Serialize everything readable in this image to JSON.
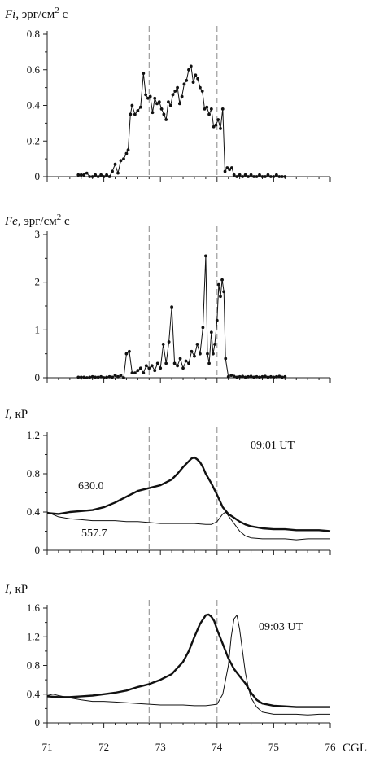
{
  "chart_data": [
    {
      "type": "line",
      "title_symbol": "Fi",
      "title_unit": ", эрг/см",
      "title_sup": "2",
      "title_tail": " с",
      "ylim": [
        0,
        0.8
      ],
      "yticks": [
        "0",
        "0.2",
        "0.4",
        "0.6",
        "0.8"
      ],
      "xlim": [
        71,
        76
      ],
      "dashed_x": [
        72.8,
        74.0
      ],
      "series": [
        {
          "marker": "dot",
          "x": [
            71.55,
            71.6,
            71.65,
            71.7,
            71.75,
            71.8,
            71.85,
            71.9,
            71.95,
            72.0,
            72.05,
            72.1,
            72.15,
            72.2,
            72.25,
            72.3,
            72.35,
            72.4,
            72.43,
            72.47,
            72.5,
            72.55,
            72.6,
            72.65,
            72.7,
            72.74,
            72.78,
            72.82,
            72.86,
            72.9,
            72.94,
            72.98,
            73.02,
            73.06,
            73.1,
            73.14,
            73.18,
            73.22,
            73.26,
            73.3,
            73.34,
            73.38,
            73.42,
            73.46,
            73.5,
            73.54,
            73.58,
            73.62,
            73.66,
            73.7,
            73.74,
            73.78,
            73.82,
            73.86,
            73.9,
            73.94,
            73.98,
            74.02,
            74.06,
            74.1,
            74.14,
            74.18,
            74.22,
            74.26,
            74.3,
            74.35,
            74.4,
            74.45,
            74.5,
            74.55,
            74.6,
            74.65,
            74.7,
            74.75,
            74.8,
            74.85,
            74.9,
            74.95,
            75.0,
            75.05,
            75.1,
            75.15,
            75.2
          ],
          "y": [
            0.01,
            0.01,
            0.01,
            0.02,
            0.0,
            0.0,
            0.01,
            0.0,
            0.01,
            0.0,
            0.01,
            0.0,
            0.03,
            0.07,
            0.02,
            0.09,
            0.1,
            0.13,
            0.15,
            0.35,
            0.4,
            0.35,
            0.37,
            0.39,
            0.58,
            0.46,
            0.44,
            0.45,
            0.36,
            0.44,
            0.41,
            0.42,
            0.38,
            0.35,
            0.32,
            0.42,
            0.4,
            0.46,
            0.48,
            0.5,
            0.41,
            0.45,
            0.52,
            0.54,
            0.6,
            0.62,
            0.53,
            0.57,
            0.55,
            0.5,
            0.48,
            0.38,
            0.39,
            0.35,
            0.38,
            0.28,
            0.29,
            0.32,
            0.27,
            0.38,
            0.03,
            0.05,
            0.04,
            0.05,
            0.01,
            0.0,
            0.01,
            0.0,
            0.01,
            0.0,
            0.01,
            0.0,
            0.0,
            0.01,
            0.0,
            0.0,
            0.01,
            0.0,
            0.0,
            0.01,
            0.0,
            0.0,
            0.0
          ]
        }
      ]
    },
    {
      "type": "line",
      "title_symbol": "Fe",
      "title_unit": ", эрг/см",
      "title_sup": "2",
      "title_tail": " с",
      "ylim": [
        0,
        3
      ],
      "yticks": [
        "0",
        "1",
        "2",
        "3"
      ],
      "xlim": [
        71,
        76
      ],
      "dashed_x": [
        72.8,
        74.0
      ],
      "series": [
        {
          "marker": "dot",
          "x": [
            71.55,
            71.6,
            71.65,
            71.7,
            71.75,
            71.8,
            71.85,
            71.9,
            71.95,
            72.0,
            72.05,
            72.1,
            72.15,
            72.2,
            72.25,
            72.3,
            72.35,
            72.4,
            72.45,
            72.5,
            72.55,
            72.6,
            72.65,
            72.7,
            72.75,
            72.8,
            72.85,
            72.9,
            72.95,
            73.0,
            73.05,
            73.1,
            73.15,
            73.2,
            73.25,
            73.3,
            73.35,
            73.4,
            73.45,
            73.5,
            73.55,
            73.6,
            73.65,
            73.7,
            73.75,
            73.8,
            73.83,
            73.86,
            73.9,
            73.93,
            73.96,
            74.0,
            74.03,
            74.06,
            74.09,
            74.12,
            74.15,
            74.2,
            74.25,
            74.3,
            74.35,
            74.4,
            74.45,
            74.5,
            74.55,
            74.6,
            74.65,
            74.7,
            74.75,
            74.8,
            74.85,
            74.9,
            74.95,
            75.0,
            75.05,
            75.1,
            75.15,
            75.2
          ],
          "y": [
            0.01,
            0.01,
            0.01,
            0.0,
            0.01,
            0.02,
            0.01,
            0.01,
            0.02,
            0.0,
            0.01,
            0.02,
            0.01,
            0.05,
            0.02,
            0.05,
            0.0,
            0.5,
            0.55,
            0.1,
            0.1,
            0.15,
            0.2,
            0.1,
            0.25,
            0.2,
            0.25,
            0.15,
            0.3,
            0.2,
            0.7,
            0.3,
            0.75,
            1.48,
            0.3,
            0.25,
            0.4,
            0.2,
            0.35,
            0.3,
            0.55,
            0.45,
            0.7,
            0.5,
            1.05,
            2.55,
            0.5,
            0.3,
            0.95,
            0.5,
            0.7,
            1.2,
            1.95,
            1.7,
            2.05,
            1.8,
            0.4,
            0.02,
            0.05,
            0.03,
            0.01,
            0.02,
            0.03,
            0.01,
            0.02,
            0.03,
            0.01,
            0.02,
            0.01,
            0.02,
            0.03,
            0.01,
            0.02,
            0.01,
            0.02,
            0.03,
            0.01,
            0.02
          ]
        }
      ]
    },
    {
      "type": "line",
      "title_symbol": "I",
      "title_unit": ", кР",
      "annotation": "09:01  UT",
      "ylim": [
        0,
        1.2
      ],
      "yticks": [
        "0",
        "0.4",
        "0.8",
        "1.2"
      ],
      "xlim": [
        71,
        76
      ],
      "dashed_x": [
        72.8,
        74.0
      ],
      "series": [
        {
          "name": "630.0",
          "weight": "thick",
          "x": [
            71.0,
            71.2,
            71.4,
            71.6,
            71.8,
            72.0,
            72.2,
            72.4,
            72.6,
            72.8,
            73.0,
            73.1,
            73.2,
            73.3,
            73.4,
            73.5,
            73.55,
            73.6,
            73.65,
            73.7,
            73.75,
            73.8,
            73.9,
            74.0,
            74.1,
            74.2,
            74.3,
            74.4,
            74.5,
            74.6,
            74.8,
            75.0,
            75.2,
            75.4,
            75.6,
            75.8,
            76.0
          ],
          "y": [
            0.39,
            0.38,
            0.4,
            0.41,
            0.42,
            0.45,
            0.5,
            0.56,
            0.62,
            0.65,
            0.68,
            0.71,
            0.74,
            0.8,
            0.87,
            0.93,
            0.96,
            0.97,
            0.95,
            0.92,
            0.87,
            0.8,
            0.7,
            0.58,
            0.45,
            0.38,
            0.34,
            0.3,
            0.27,
            0.25,
            0.23,
            0.22,
            0.22,
            0.21,
            0.21,
            0.21,
            0.2
          ]
        },
        {
          "name": "557.7",
          "weight": "thin",
          "x": [
            71.0,
            71.2,
            71.4,
            71.6,
            71.8,
            72.0,
            72.2,
            72.4,
            72.6,
            72.8,
            73.0,
            73.2,
            73.4,
            73.6,
            73.8,
            73.9,
            74.0,
            74.05,
            74.1,
            74.15,
            74.2,
            74.3,
            74.4,
            74.5,
            74.6,
            74.8,
            75.0,
            75.2,
            75.4,
            75.6,
            75.8,
            76.0
          ],
          "y": [
            0.4,
            0.35,
            0.33,
            0.32,
            0.31,
            0.31,
            0.31,
            0.3,
            0.3,
            0.29,
            0.28,
            0.28,
            0.28,
            0.28,
            0.27,
            0.27,
            0.3,
            0.34,
            0.38,
            0.4,
            0.36,
            0.28,
            0.2,
            0.15,
            0.13,
            0.12,
            0.12,
            0.12,
            0.11,
            0.12,
            0.12,
            0.12
          ]
        }
      ]
    },
    {
      "type": "line",
      "title_symbol": "I",
      "title_unit": ", кР",
      "annotation": "09:03  UT",
      "ylim": [
        0,
        1.6
      ],
      "yticks": [
        "0",
        "0.4",
        "0.8",
        "1.2",
        "1.6"
      ],
      "xticks": [
        "71",
        "72",
        "73",
        "74",
        "75",
        "76"
      ],
      "xlabel": "CGL",
      "xlim": [
        71,
        76
      ],
      "dashed_x": [
        72.8,
        74.0
      ],
      "series": [
        {
          "name": "",
          "weight": "thick",
          "x": [
            71.0,
            71.2,
            71.4,
            71.6,
            71.8,
            72.0,
            72.2,
            72.4,
            72.6,
            72.8,
            73.0,
            73.2,
            73.4,
            73.5,
            73.6,
            73.7,
            73.8,
            73.85,
            73.9,
            73.95,
            74.0,
            74.1,
            74.2,
            74.3,
            74.4,
            74.5,
            74.6,
            74.7,
            74.8,
            75.0,
            75.2,
            75.4,
            75.6,
            75.8,
            76.0
          ],
          "y": [
            0.37,
            0.36,
            0.36,
            0.37,
            0.38,
            0.4,
            0.42,
            0.45,
            0.5,
            0.54,
            0.6,
            0.68,
            0.85,
            1.0,
            1.2,
            1.38,
            1.5,
            1.51,
            1.48,
            1.42,
            1.3,
            1.1,
            0.9,
            0.75,
            0.65,
            0.55,
            0.42,
            0.32,
            0.27,
            0.24,
            0.23,
            0.22,
            0.22,
            0.22,
            0.22
          ]
        },
        {
          "name": "",
          "weight": "thin",
          "x": [
            71.0,
            71.1,
            71.2,
            71.4,
            71.6,
            71.8,
            72.0,
            72.2,
            72.4,
            72.6,
            72.8,
            73.0,
            73.2,
            73.4,
            73.6,
            73.8,
            74.0,
            74.1,
            74.2,
            74.25,
            74.3,
            74.35,
            74.4,
            74.45,
            74.5,
            74.55,
            74.6,
            74.7,
            74.8,
            75.0,
            75.2,
            75.4,
            75.6,
            75.8,
            76.0
          ],
          "y": [
            0.38,
            0.4,
            0.38,
            0.35,
            0.32,
            0.3,
            0.3,
            0.29,
            0.28,
            0.27,
            0.26,
            0.25,
            0.25,
            0.25,
            0.24,
            0.24,
            0.26,
            0.4,
            0.8,
            1.2,
            1.45,
            1.5,
            1.3,
            1.0,
            0.7,
            0.5,
            0.35,
            0.22,
            0.15,
            0.12,
            0.12,
            0.12,
            0.11,
            0.12,
            0.12
          ]
        }
      ]
    }
  ]
}
